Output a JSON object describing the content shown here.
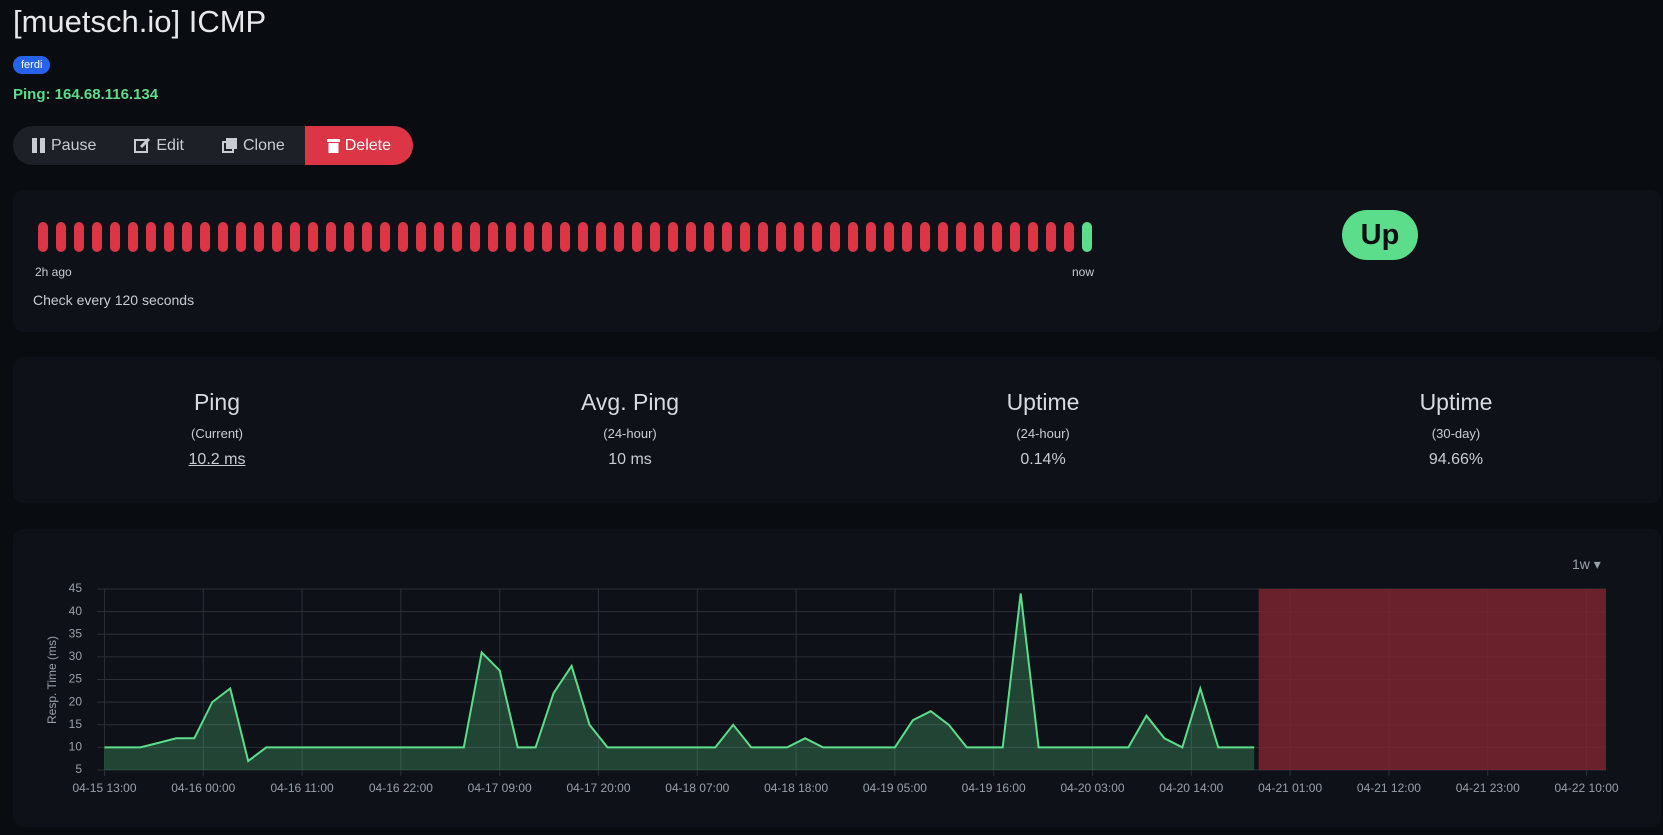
{
  "header": {
    "title": "[muetsch.io] ICMP",
    "tag": "ferdi",
    "subtitle": "Ping: 164.68.116.134"
  },
  "buttons": [
    "Pause",
    "Edit",
    "Clone",
    "Delete"
  ],
  "heartbeat": {
    "beats": [
      0,
      0,
      0,
      0,
      0,
      0,
      0,
      0,
      0,
      0,
      0,
      0,
      0,
      0,
      0,
      0,
      0,
      0,
      0,
      0,
      0,
      0,
      0,
      0,
      0,
      0,
      0,
      0,
      0,
      0,
      0,
      0,
      0,
      0,
      0,
      0,
      0,
      0,
      0,
      0,
      0,
      0,
      0,
      0,
      0,
      0,
      0,
      0,
      0,
      0,
      0,
      0,
      0,
      0,
      0,
      0,
      0,
      0,
      1
    ],
    "start_label": "2h ago",
    "end_label": "now",
    "interval": "Check every 120 seconds",
    "status": "Up"
  },
  "stats": [
    {
      "title": "Ping",
      "subtitle": "(Current)",
      "value": "10.2 ms"
    },
    {
      "title": "Avg. Ping",
      "subtitle": "(24-hour)",
      "value": "10 ms"
    },
    {
      "title": "Uptime",
      "subtitle": "(24-hour)",
      "value": "0.14%"
    },
    {
      "title": "Uptime",
      "subtitle": "(30-day)",
      "value": "94.66%"
    }
  ],
  "range_selector": "1w",
  "chart_data": {
    "type": "area",
    "ylabel": "Resp. Time (ms)",
    "color": "#5cdd8b",
    "x": [
      "04-15 13:00",
      "04-15 15:00",
      "04-15 17:00",
      "04-15 19:00",
      "04-15 21:00",
      "04-15 23:00",
      "04-16 01:00",
      "04-16 03:00",
      "04-16 05:00",
      "04-16 07:00",
      "04-16 09:00",
      "04-16 11:00",
      "04-16 13:00",
      "04-16 15:00",
      "04-16 17:00",
      "04-16 19:00",
      "04-16 21:00",
      "04-16 23:00",
      "04-17 01:00",
      "04-17 03:00",
      "04-17 05:00",
      "04-17 07:00",
      "04-17 09:00",
      "04-17 11:00",
      "04-17 13:00",
      "04-17 15:00",
      "04-17 17:00",
      "04-17 19:00",
      "04-17 21:00",
      "04-17 23:00",
      "04-18 01:00",
      "04-18 03:00",
      "04-18 05:00",
      "04-18 07:00",
      "04-18 09:00",
      "04-18 11:00",
      "04-18 13:00",
      "04-18 15:00",
      "04-18 17:00",
      "04-18 19:00",
      "04-18 21:00",
      "04-18 23:00",
      "04-19 01:00",
      "04-19 03:00",
      "04-19 05:00",
      "04-19 07:00",
      "04-19 09:00",
      "04-19 11:00",
      "04-19 13:00",
      "04-19 15:00",
      "04-19 17:00",
      "04-19 19:00",
      "04-19 21:00",
      "04-19 23:00",
      "04-20 01:00",
      "04-20 03:00",
      "04-20 05:00",
      "04-20 07:00",
      "04-20 09:00",
      "04-20 11:00",
      "04-20 13:00",
      "04-20 15:00",
      "04-20 17:00",
      "04-20 19:00",
      "04-20 21:00"
    ],
    "values": [
      10,
      10,
      10,
      11,
      12,
      12,
      20,
      23,
      7,
      10,
      10,
      10,
      10,
      10,
      10,
      10,
      10,
      10,
      10,
      10,
      10,
      31,
      27,
      10,
      10,
      22,
      28,
      15,
      10,
      10,
      10,
      10,
      10,
      10,
      10,
      15,
      10,
      10,
      10,
      12,
      10,
      10,
      10,
      10,
      10,
      16,
      18,
      15,
      10,
      10,
      10,
      44,
      10,
      10,
      10,
      10,
      10,
      10,
      17,
      12,
      10,
      23,
      10,
      10,
      10
    ],
    "down_range": [
      "04-20 21:30",
      "04-22 12:10"
    ],
    "down_color": "#7a2530",
    "xlim": [
      "04-15 12:10",
      "04-22 12:10"
    ],
    "xticks": [
      "04-15 13:00",
      "04-16 00:00",
      "04-16 11:00",
      "04-16 22:00",
      "04-17 09:00",
      "04-17 20:00",
      "04-18 07:00",
      "04-18 18:00",
      "04-19 05:00",
      "04-19 16:00",
      "04-20 03:00",
      "04-20 14:00",
      "04-21 01:00",
      "04-21 12:00",
      "04-21 23:00",
      "04-22 10:00"
    ],
    "ylim": [
      5,
      45
    ],
    "yticks": [
      5,
      10,
      15,
      20,
      25,
      30,
      35,
      40,
      45
    ],
    "grid": true
  }
}
